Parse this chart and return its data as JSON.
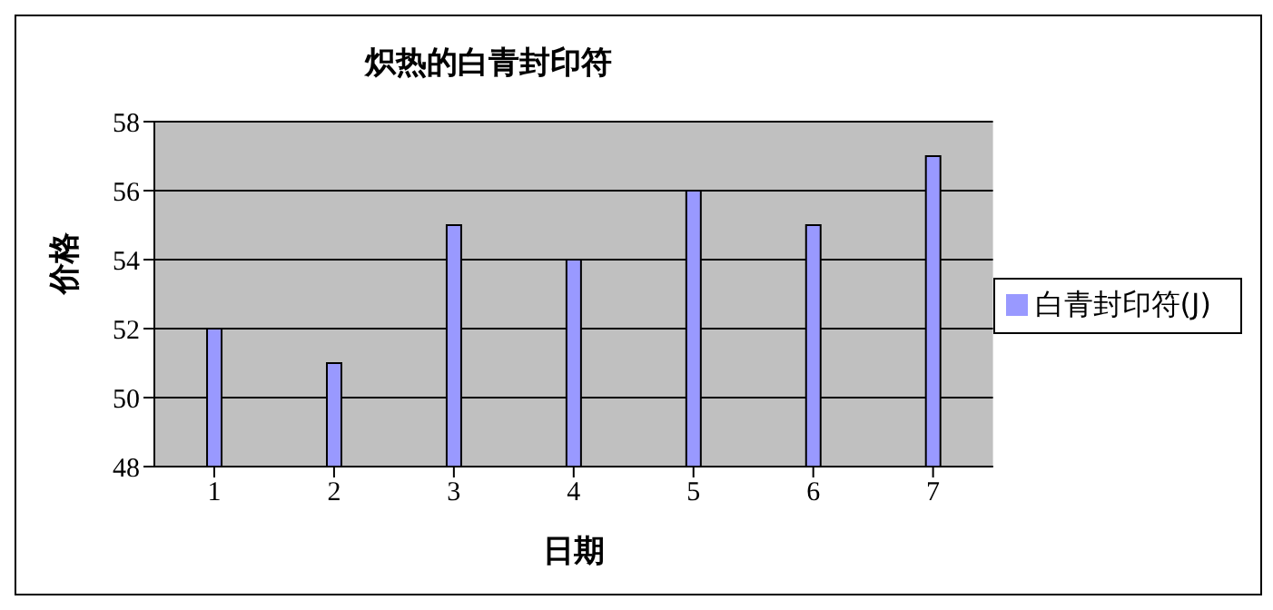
{
  "chart_data": {
    "type": "bar",
    "title": "炽热的白青封印符",
    "xlabel": "日期",
    "ylabel": "价格",
    "categories": [
      "1",
      "2",
      "3",
      "4",
      "5",
      "6",
      "7"
    ],
    "series": [
      {
        "name": "白青封印符(J)",
        "color": "#9999ff",
        "values": [
          52,
          51,
          55,
          54,
          56,
          55,
          57
        ]
      }
    ],
    "ylim": [
      48,
      58
    ],
    "yticks": [
      48,
      50,
      52,
      54,
      56,
      58
    ],
    "grid": "y",
    "legend": "right"
  }
}
